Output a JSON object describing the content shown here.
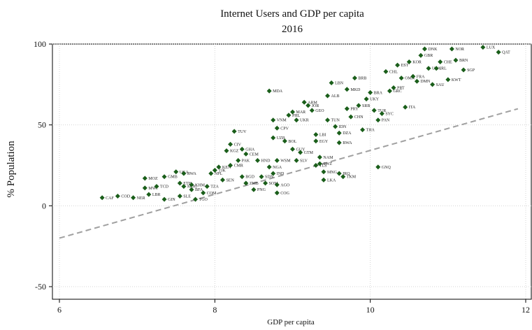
{
  "chart_data": {
    "type": "scatter",
    "title": "Internet Users and GDP per capita",
    "subtitle": "2016",
    "xlabel": "GDP per capita",
    "ylabel": "% Population",
    "xlim": [
      6,
      12
    ],
    "ylim": [
      -50,
      100
    ],
    "xticks": [
      "6",
      "8",
      "10",
      "12"
    ],
    "yticks": [
      "100",
      "50",
      "0",
      "-50"
    ],
    "grid": true,
    "marker_color": "#1a5e1a",
    "line_color": "#a0a0a0",
    "reference_line": {
      "x": [
        6,
        11.9
      ],
      "y": [
        -20,
        60
      ]
    },
    "points": [
      {
        "x": 6.55,
        "y": 5,
        "label": "CAF"
      },
      {
        "x": 6.75,
        "y": 6,
        "label": "COD"
      },
      {
        "x": 6.95,
        "y": 5,
        "label": "NER"
      },
      {
        "x": 7.1,
        "y": 17,
        "label": "MOZ"
      },
      {
        "x": 7.1,
        "y": 11,
        "label": "MWI"
      },
      {
        "x": 7.15,
        "y": 7,
        "label": "LBR"
      },
      {
        "x": 7.25,
        "y": 12,
        "label": "TCD"
      },
      {
        "x": 7.35,
        "y": 18,
        "label": "GMB"
      },
      {
        "x": 7.35,
        "y": 4,
        "label": "GIN"
      },
      {
        "x": 7.5,
        "y": 21,
        "label": "UGA"
      },
      {
        "x": 7.55,
        "y": 6,
        "label": "SLE"
      },
      {
        "x": 7.6,
        "y": 20,
        "label": "RWA"
      },
      {
        "x": 7.55,
        "y": 14,
        "label": "ETH"
      },
      {
        "x": 7.6,
        "y": 12,
        "label": "MDG"
      },
      {
        "x": 7.7,
        "y": 13,
        "label": "KHM"
      },
      {
        "x": 7.7,
        "y": 10,
        "label": "BFA"
      },
      {
        "x": 7.75,
        "y": 4,
        "label": "TGO"
      },
      {
        "x": 7.85,
        "y": 8,
        "label": "COM"
      },
      {
        "x": 7.9,
        "y": 12,
        "label": "TZA"
      },
      {
        "x": 7.95,
        "y": 20,
        "label": "NPL"
      },
      {
        "x": 8.0,
        "y": 22,
        "label": "TJK"
      },
      {
        "x": 8.05,
        "y": 24,
        "label": "KEN"
      },
      {
        "x": 8.1,
        "y": 16,
        "label": "SEN"
      },
      {
        "x": 8.15,
        "y": 34,
        "label": "KGZ"
      },
      {
        "x": 8.2,
        "y": 38,
        "label": "CIV"
      },
      {
        "x": 8.25,
        "y": 46,
        "label": "TUV"
      },
      {
        "x": 8.2,
        "y": 25,
        "label": "CMR"
      },
      {
        "x": 8.3,
        "y": 28,
        "label": "PAK"
      },
      {
        "x": 8.35,
        "y": 35,
        "label": "GHA"
      },
      {
        "x": 8.4,
        "y": 32,
        "label": "CEM"
      },
      {
        "x": 8.35,
        "y": 18,
        "label": "BGD"
      },
      {
        "x": 8.4,
        "y": 14,
        "label": "ZMB"
      },
      {
        "x": 8.5,
        "y": 10,
        "label": "PNG"
      },
      {
        "x": 8.55,
        "y": 28,
        "label": "HND"
      },
      {
        "x": 8.6,
        "y": 18,
        "label": "SDN"
      },
      {
        "x": 8.65,
        "y": 14,
        "label": "SOM"
      },
      {
        "x": 8.7,
        "y": 71,
        "label": "MDA"
      },
      {
        "x": 8.75,
        "y": 53,
        "label": "VNM"
      },
      {
        "x": 8.8,
        "y": 48,
        "label": "CPV"
      },
      {
        "x": 8.75,
        "y": 42,
        "label": "UZB"
      },
      {
        "x": 8.8,
        "y": 28,
        "label": "WSM"
      },
      {
        "x": 8.7,
        "y": 24,
        "label": "NGA"
      },
      {
        "x": 8.75,
        "y": 20,
        "label": "IND"
      },
      {
        "x": 8.8,
        "y": 13,
        "label": "AGO"
      },
      {
        "x": 8.8,
        "y": 8,
        "label": "COG"
      },
      {
        "x": 8.9,
        "y": 40,
        "label": "BOL"
      },
      {
        "x": 8.95,
        "y": 56,
        "label": "PHL"
      },
      {
        "x": 9.0,
        "y": 58,
        "label": "MAR"
      },
      {
        "x": 9.05,
        "y": 53,
        "label": "UKR"
      },
      {
        "x": 9.0,
        "y": 35,
        "label": "GUY"
      },
      {
        "x": 9.05,
        "y": 28,
        "label": "SLV"
      },
      {
        "x": 9.1,
        "y": 33,
        "label": "GTM"
      },
      {
        "x": 9.15,
        "y": 64,
        "label": "ARM"
      },
      {
        "x": 9.2,
        "y": 62,
        "label": "JOR"
      },
      {
        "x": 9.25,
        "y": 59,
        "label": "GEO"
      },
      {
        "x": 9.3,
        "y": 44,
        "label": "LBI"
      },
      {
        "x": 9.3,
        "y": 40,
        "label": "EGY"
      },
      {
        "x": 9.3,
        "y": 25,
        "label": "TLS"
      },
      {
        "x": 9.35,
        "y": 30,
        "label": "NAM"
      },
      {
        "x": 9.35,
        "y": 26,
        "label": "SWZ"
      },
      {
        "x": 9.4,
        "y": 21,
        "label": "MNG"
      },
      {
        "x": 9.4,
        "y": 16,
        "label": "LKA"
      },
      {
        "x": 9.45,
        "y": 68,
        "label": "ALB"
      },
      {
        "x": 9.45,
        "y": 53,
        "label": "TUN"
      },
      {
        "x": 9.5,
        "y": 76,
        "label": "LBN"
      },
      {
        "x": 9.55,
        "y": 49,
        "label": "IDN"
      },
      {
        "x": 9.6,
        "y": 45,
        "label": "DZA"
      },
      {
        "x": 9.6,
        "y": 39,
        "label": "BWA"
      },
      {
        "x": 9.6,
        "y": 20,
        "label": "IRQ"
      },
      {
        "x": 9.65,
        "y": 18,
        "label": "TKM"
      },
      {
        "x": 9.7,
        "y": 72,
        "label": "MKD"
      },
      {
        "x": 9.7,
        "y": 60,
        "label": "PRY"
      },
      {
        "x": 9.75,
        "y": 55,
        "label": "CHN"
      },
      {
        "x": 9.8,
        "y": 79,
        "label": "BRB"
      },
      {
        "x": 9.85,
        "y": 62,
        "label": "SRB"
      },
      {
        "x": 9.9,
        "y": 47,
        "label": "THA"
      },
      {
        "x": 9.95,
        "y": 66,
        "label": "UKY"
      },
      {
        "x": 10.0,
        "y": 70,
        "label": "BRA"
      },
      {
        "x": 10.05,
        "y": 59,
        "label": "TUR"
      },
      {
        "x": 10.1,
        "y": 53,
        "label": "PAN"
      },
      {
        "x": 10.1,
        "y": 24,
        "label": "GNQ"
      },
      {
        "x": 10.15,
        "y": 57,
        "label": "SYC"
      },
      {
        "x": 10.2,
        "y": 83,
        "label": "CHL"
      },
      {
        "x": 10.25,
        "y": 71,
        "label": "GRC"
      },
      {
        "x": 10.3,
        "y": 73,
        "label": "PRT"
      },
      {
        "x": 10.35,
        "y": 87,
        "label": "EST"
      },
      {
        "x": 10.4,
        "y": 79,
        "label": "OMN"
      },
      {
        "x": 10.45,
        "y": 61,
        "label": "ITA"
      },
      {
        "x": 10.5,
        "y": 89,
        "label": "KOR"
      },
      {
        "x": 10.55,
        "y": 80,
        "label": "FRA"
      },
      {
        "x": 10.6,
        "y": 77,
        "label": "DMN"
      },
      {
        "x": 10.65,
        "y": 93,
        "label": "GBR"
      },
      {
        "x": 10.7,
        "y": 97,
        "label": "DNK"
      },
      {
        "x": 10.75,
        "y": 85,
        "label": "USA"
      },
      {
        "x": 10.8,
        "y": 75,
        "label": "SAU"
      },
      {
        "x": 10.85,
        "y": 85,
        "label": "IRL"
      },
      {
        "x": 10.9,
        "y": 89,
        "label": "CHE"
      },
      {
        "x": 11.0,
        "y": 78,
        "label": "KWT"
      },
      {
        "x": 11.05,
        "y": 97,
        "label": "NOR"
      },
      {
        "x": 11.1,
        "y": 90,
        "label": "BRN"
      },
      {
        "x": 11.2,
        "y": 84,
        "label": "SGP"
      },
      {
        "x": 11.45,
        "y": 98,
        "label": "LUX"
      },
      {
        "x": 11.65,
        "y": 95,
        "label": "QAT"
      }
    ]
  }
}
